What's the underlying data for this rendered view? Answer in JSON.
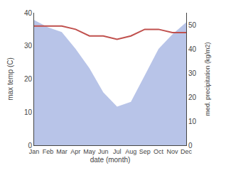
{
  "chart_data": {
    "type": "line",
    "categories": [
      "Jan",
      "Feb",
      "Mar",
      "Apr",
      "May",
      "Jun",
      "Jul",
      "Aug",
      "Sep",
      "Oct",
      "Nov",
      "Dec"
    ],
    "xlabel": "date (month)",
    "ylabel": "max temp (C)",
    "y2label": "med. precipitation (kg/m2)",
    "series": [
      {
        "type": "area",
        "axis": "y2",
        "color": "#b8c4e8",
        "values": [
          52,
          49,
          47,
          40,
          32,
          22,
          16,
          18,
          29,
          40,
          46,
          51
        ]
      },
      {
        "type": "line",
        "color": "#c0504d",
        "values": [
          36,
          36,
          36,
          35,
          33,
          33,
          32,
          33,
          35,
          35,
          34,
          34
        ]
      }
    ],
    "ylim": [
      0,
      40
    ],
    "yticks": [
      0,
      10,
      20,
      30,
      40
    ],
    "y2lim": [
      0,
      55
    ],
    "y2ticks": [
      0,
      10,
      20,
      30,
      40,
      50
    ],
    "grid": false
  }
}
